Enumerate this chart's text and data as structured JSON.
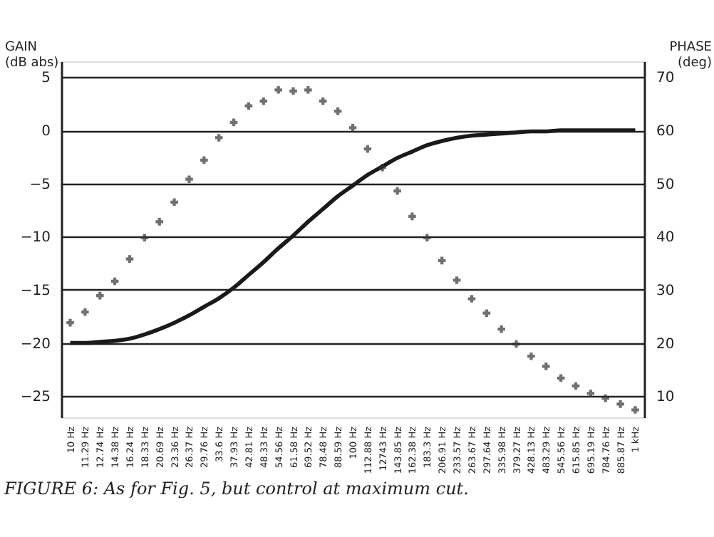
{
  "chart_data": {
    "type": "line",
    "ylabel": "GAIN\n(dB abs)",
    "y2label": "PHASE\n(deg)",
    "categories": [
      "10 Hz",
      "11.29 Hz",
      "12.74 Hz",
      "14.38 Hz",
      "16.24 Hz",
      "18.33 Hz",
      "20.69 Hz",
      "23.36 Hz",
      "26.37 Hz",
      "29.76 Hz",
      "33.6 Hz",
      "37.93 Hz",
      "42.81 Hz",
      "48.33 Hz",
      "54.56 Hz",
      "61.58 Hz",
      "69.52 Hz",
      "78.48 Hz",
      "88.59 Hz",
      "100 Hz",
      "112.88 Hz",
      "12743 Hz",
      "143.85 Hz",
      "162.38 Hz",
      "183.3 Hz",
      "206.91 Hz",
      "233.57 Hz",
      "263.67 Hz",
      "297.64 Hz",
      "335.98 Hz",
      "379.27 Hz",
      "428.13 Hz",
      "483.29 Hz",
      "545.56 Hz",
      "615.85 Hz",
      "695.19 Hz",
      "784.76 Hz",
      "885.87 Hz",
      "1 kHz"
    ],
    "series": [
      {
        "color": "#1a1a1a",
        "line_style": "solid",
        "values": [
          -20,
          -20,
          -19.9,
          -19.8,
          -19.6,
          -19.2,
          -18.7,
          -18.1,
          -17.4,
          -16.6,
          -15.8,
          -14.8,
          -13.6,
          -12.4,
          -11.1,
          -9.9,
          -8.6,
          -7.4,
          -6.2,
          -5.2,
          -4.2,
          -3.4,
          -2.6,
          -2.0,
          -1.4,
          -1.0,
          -0.7,
          -0.5,
          -0.4,
          -0.3,
          -0.2,
          -0.1,
          -0.1,
          0,
          0,
          0,
          0,
          0,
          0
        ]
      },
      {
        "type": "scatter",
        "axis": "y2",
        "marker": "cross",
        "color": "#333333",
        "values": [
          23.8,
          25.8,
          28.9,
          31.6,
          35.8,
          39.8,
          42.8,
          46.5,
          50.8,
          54.4,
          58.6,
          61.5,
          64.6,
          65.5,
          67.6,
          67.4,
          67.6,
          65.5,
          63.6,
          60.5,
          56.5,
          53,
          48.6,
          43.8,
          39.8,
          35.5,
          31.8,
          28.3,
          25.6,
          22.6,
          19.8,
          17.5,
          15.6,
          13.4,
          11.9,
          10.5,
          9.6,
          8.5,
          7.4
        ]
      }
    ],
    "ylim": [
      -27,
      6.5
    ],
    "yticks": [
      -25,
      -20,
      -15,
      -10,
      -5,
      0,
      5
    ],
    "y2lim": [
      6,
      73
    ],
    "y2ticks": [
      10,
      20,
      30,
      40,
      50,
      60,
      70
    ],
    "grid": "y",
    "annotations": [
      "FIGURE 6: As for Fig. 5, but control at maximum cut."
    ]
  }
}
